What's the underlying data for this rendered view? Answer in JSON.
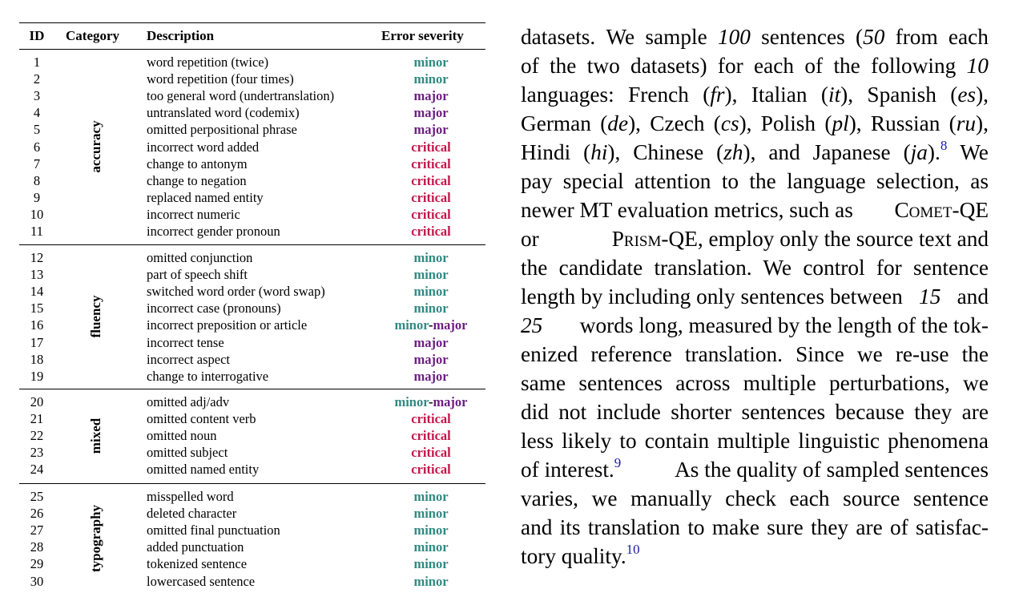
{
  "table": {
    "headers": {
      "id": "ID",
      "category": "Category",
      "description": "Description",
      "severity": "Error severity"
    },
    "groups": [
      {
        "category": "accuracy",
        "rows": [
          {
            "id": "1",
            "description": "word repetition (twice)",
            "severity": "minor"
          },
          {
            "id": "2",
            "description": "word repetition (four times)",
            "severity": "minor"
          },
          {
            "id": "3",
            "description": "too general word (undertranslation)",
            "severity": "major"
          },
          {
            "id": "4",
            "description": "untranslated word (codemix)",
            "severity": "major"
          },
          {
            "id": "5",
            "description": "omitted perpositional phrase",
            "severity": "major"
          },
          {
            "id": "6",
            "description": "incorrect word added",
            "severity": "critical"
          },
          {
            "id": "7",
            "description": "change to antonym",
            "severity": "critical"
          },
          {
            "id": "8",
            "description": "change to negation",
            "severity": "critical"
          },
          {
            "id": "9",
            "description": "replaced named entity",
            "severity": "critical"
          },
          {
            "id": "10",
            "description": "incorrect numeric",
            "severity": "critical"
          },
          {
            "id": "11",
            "description": "incorrect gender pronoun",
            "severity": "critical"
          }
        ]
      },
      {
        "category": "fluency",
        "rows": [
          {
            "id": "12",
            "description": "omitted conjunction",
            "severity": "minor"
          },
          {
            "id": "13",
            "description": "part of speech shift",
            "severity": "minor"
          },
          {
            "id": "14",
            "description": "switched word order (word swap)",
            "severity": "minor"
          },
          {
            "id": "15",
            "description": "incorrect case (pronouns)",
            "severity": "minor"
          },
          {
            "id": "16",
            "description": "incorrect preposition or article",
            "severity": "minor-major"
          },
          {
            "id": "17",
            "description": "incorrect tense",
            "severity": "major"
          },
          {
            "id": "18",
            "description": "incorrect aspect",
            "severity": "major"
          },
          {
            "id": "19",
            "description": "change to interrogative",
            "severity": "major"
          }
        ]
      },
      {
        "category": "mixed",
        "rows": [
          {
            "id": "20",
            "description": "omitted adj/adv",
            "severity": "minor-major"
          },
          {
            "id": "21",
            "description": "omitted content verb",
            "severity": "critical"
          },
          {
            "id": "22",
            "description": "omitted noun",
            "severity": "critical"
          },
          {
            "id": "23",
            "description": "omitted subject",
            "severity": "critical"
          },
          {
            "id": "24",
            "description": "omitted named entity",
            "severity": "critical"
          }
        ]
      },
      {
        "category": "typography",
        "rows": [
          {
            "id": "25",
            "description": "misspelled word",
            "severity": "minor"
          },
          {
            "id": "26",
            "description": "deleted character",
            "severity": "minor"
          },
          {
            "id": "27",
            "description": "omitted final punctuation",
            "severity": "minor"
          },
          {
            "id": "28",
            "description": "added punctuation",
            "severity": "minor"
          },
          {
            "id": "29",
            "description": "tokenized sentence",
            "severity": "minor"
          },
          {
            "id": "30",
            "description": "lowercased sentence",
            "severity": "minor"
          }
        ]
      }
    ],
    "severity_colors": {
      "minor": "#2f8a83",
      "major": "#6e1e84",
      "critical": "#c3154b"
    }
  },
  "prose": {
    "lines": [
      [
        {
          "t": "datasets."
        },
        {
          "t": "We"
        },
        {
          "t": "sample"
        },
        {
          "t": "100",
          "i": true
        },
        {
          "t": "sentences"
        },
        {
          "t": "("
        },
        {
          "t": "50",
          "i": true
        },
        {
          "t": "from"
        },
        {
          "t": "each"
        }
      ],
      [
        {
          "t": "of"
        },
        {
          "t": "the"
        },
        {
          "t": "two"
        },
        {
          "t": "datasets)"
        },
        {
          "t": "for"
        },
        {
          "t": "each"
        },
        {
          "t": "of"
        },
        {
          "t": "the"
        },
        {
          "t": "following"
        },
        {
          "t": "10",
          "i": true
        }
      ],
      [
        {
          "t": "languages:"
        },
        {
          "t": "French"
        },
        {
          "t": "("
        },
        {
          "t": "fr",
          "i": true
        },
        {
          "t": "),"
        },
        {
          "t": "Italian"
        },
        {
          "t": "("
        },
        {
          "t": "it",
          "i": true
        },
        {
          "t": "),"
        },
        {
          "t": "Spanish"
        },
        {
          "t": "("
        },
        {
          "t": "es",
          "i": true
        },
        {
          "t": "),"
        }
      ],
      [
        {
          "t": "German"
        },
        {
          "t": "("
        },
        {
          "t": "de",
          "i": true
        },
        {
          "t": "),"
        },
        {
          "t": "Czech"
        },
        {
          "t": "("
        },
        {
          "t": "cs",
          "i": true
        },
        {
          "t": "),"
        },
        {
          "t": "Polish"
        },
        {
          "t": "("
        },
        {
          "t": "pl",
          "i": true
        },
        {
          "t": "),"
        },
        {
          "t": "Russian"
        },
        {
          "t": "("
        },
        {
          "t": "ru",
          "i": true
        },
        {
          "t": "),"
        }
      ],
      [
        {
          "t": "Hindi"
        },
        {
          "t": "("
        },
        {
          "t": "hi",
          "i": true
        },
        {
          "t": "),"
        },
        {
          "t": "Chinese"
        },
        {
          "t": "("
        },
        {
          "t": "zh",
          "i": true
        },
        {
          "t": "),"
        },
        {
          "t": "and"
        },
        {
          "t": "Japanese"
        },
        {
          "t": "("
        },
        {
          "t": "ja",
          "i": true
        },
        {
          "t": ")."
        },
        {
          "t": "8",
          "sup": true
        },
        {
          "t": "We"
        }
      ],
      [
        {
          "t": "pay special attention to the language selection, as"
        }
      ],
      [
        {
          "t": "newer MT evaluation metrics, such as"
        },
        {
          "t": "Comet",
          "sc": true
        },
        {
          "t": "-QE"
        }
      ],
      [
        {
          "t": "or"
        },
        {
          "t": "Prism",
          "sc": true
        },
        {
          "t": "-QE, employ only the source text and"
        }
      ],
      [
        {
          "t": "the candidate translation. We control for sentence"
        }
      ],
      [
        {
          "t": "length by including only sentences between"
        },
        {
          "t": "15",
          "i": true
        },
        {
          "t": "and"
        }
      ],
      [
        {
          "t": "25",
          "i": true
        },
        {
          "t": "words long, measured by the length of the tok-"
        }
      ],
      [
        {
          "t": "enized reference translation. Since we re-use the"
        }
      ],
      [
        {
          "t": "same sentences across multiple perturbations, we"
        }
      ],
      [
        {
          "t": "did not include shorter sentences because they are"
        }
      ],
      [
        {
          "t": "less likely to contain multiple linguistic phenomena"
        }
      ],
      [
        {
          "t": "of interest."
        },
        {
          "t": "9",
          "sup": true
        },
        {
          "t": "As the quality of sampled sentences"
        }
      ],
      [
        {
          "t": "varies, we manually check each source sentence"
        }
      ],
      [
        {
          "t": "and its translation to make sure they are of satisfac-"
        }
      ],
      [
        {
          "t": "tory quality."
        },
        {
          "t": "10",
          "sup": true
        }
      ]
    ]
  }
}
